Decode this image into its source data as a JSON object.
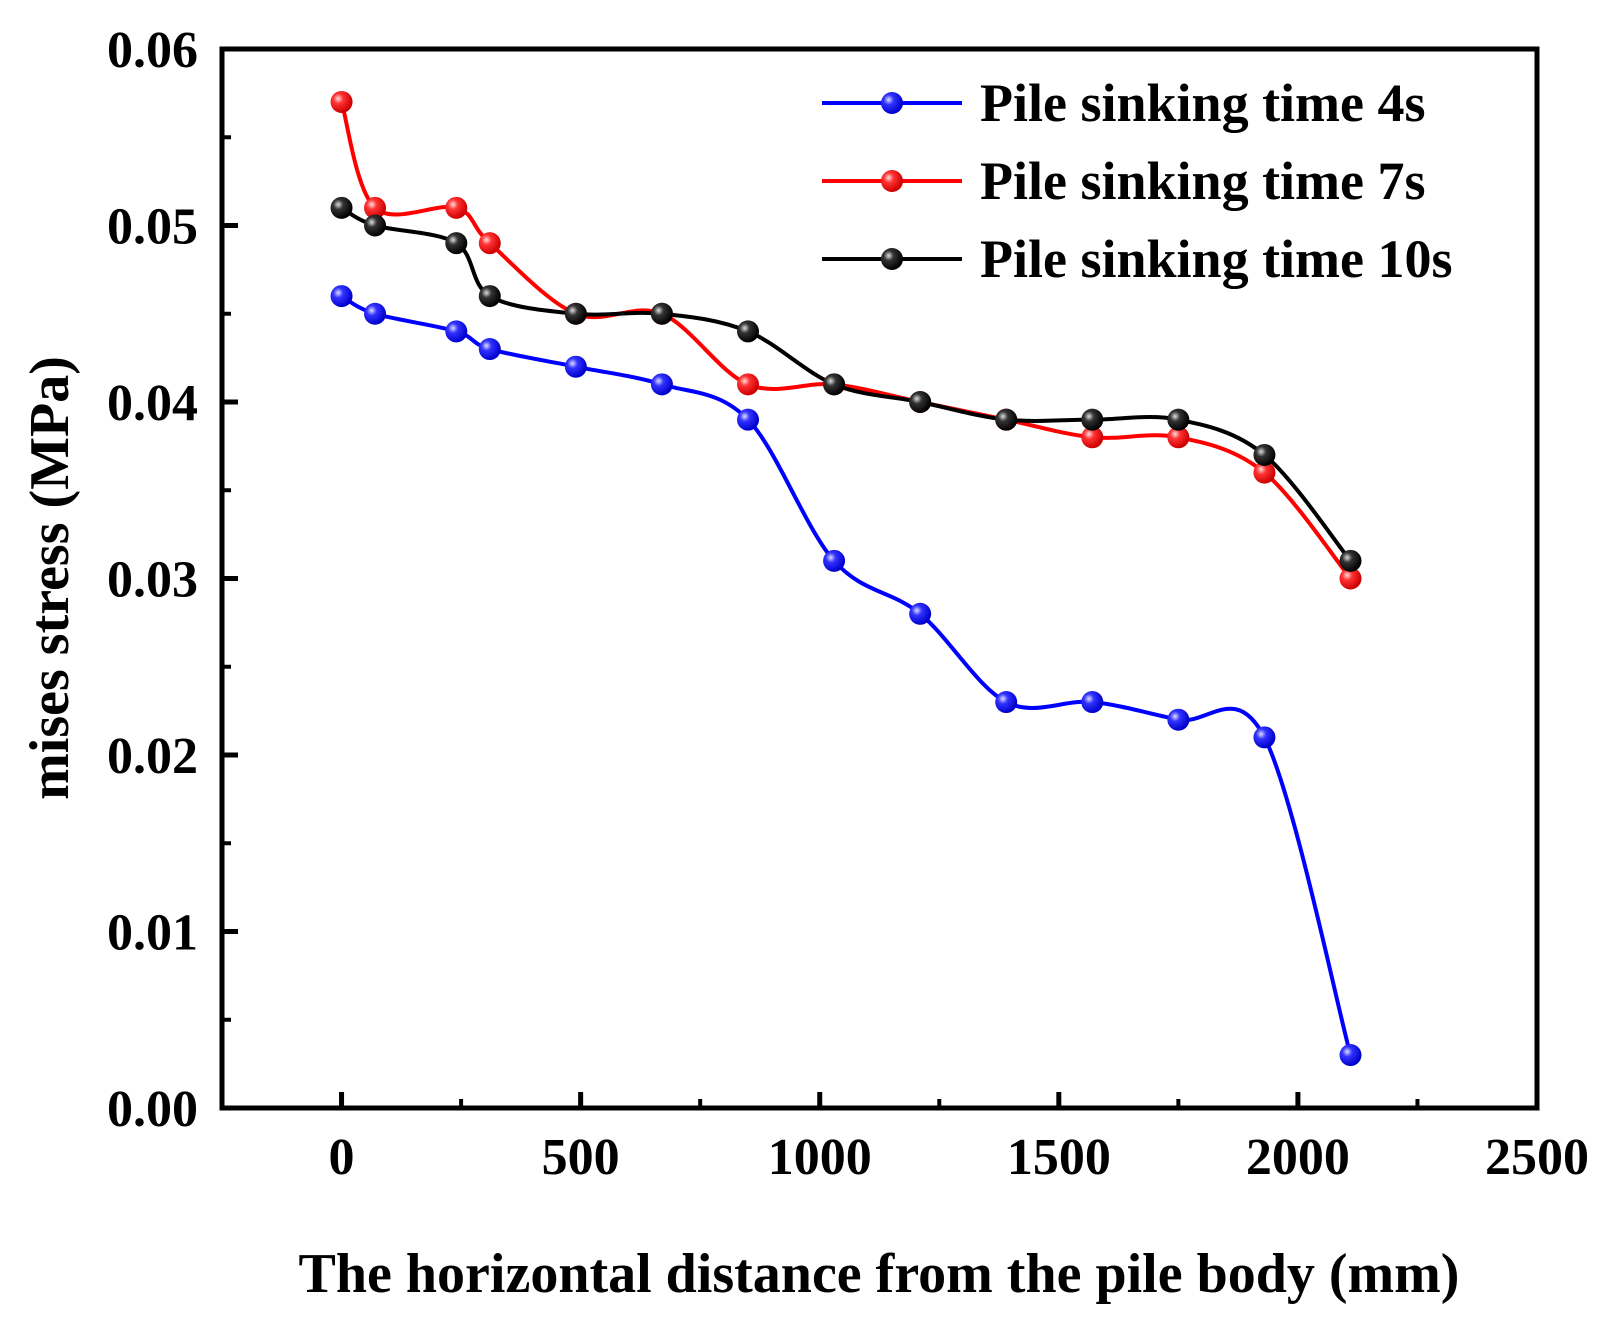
{
  "chart_data": {
    "type": "line",
    "title": "",
    "xlabel": "The horizontal distance from the pile body (mm)",
    "ylabel": "mises stress (MPa)",
    "xlim": [
      -250,
      2500
    ],
    "ylim": [
      0,
      0.06
    ],
    "xticks": [
      0,
      500,
      1000,
      1500,
      2000,
      2500
    ],
    "xtick_labels": [
      "0",
      "500",
      "1000",
      "1500",
      "2000",
      "2500"
    ],
    "yticks": [
      0,
      0.01,
      0.02,
      0.03,
      0.04,
      0.05,
      0.06
    ],
    "ytick_labels": [
      "0.00",
      "0.01",
      "0.02",
      "0.03",
      "0.04",
      "0.05",
      "0.06"
    ],
    "grid": false,
    "legend_position": "top-right",
    "x": [
      0,
      70,
      240,
      310,
      490,
      670,
      850,
      1030,
      1210,
      1390,
      1570,
      1750,
      1930,
      2110
    ],
    "series": [
      {
        "name": "Pile sinking time 4s",
        "color": "#0000ff",
        "values": [
          0.046,
          0.045,
          0.044,
          0.043,
          0.042,
          0.041,
          0.039,
          0.031,
          0.028,
          0.023,
          0.023,
          0.022,
          0.021,
          0.003
        ]
      },
      {
        "name": "Pile sinking time 7s",
        "color": "#ff0000",
        "values": [
          0.057,
          0.051,
          0.051,
          0.049,
          0.045,
          0.045,
          0.041,
          0.041,
          0.04,
          0.039,
          0.038,
          0.038,
          0.036,
          0.03
        ]
      },
      {
        "name": "Pile sinking time 10s",
        "color": "#000000",
        "values": [
          0.051,
          0.05,
          0.049,
          0.046,
          0.045,
          0.045,
          0.044,
          0.041,
          0.04,
          0.039,
          0.039,
          0.039,
          0.037,
          0.031
        ]
      }
    ]
  }
}
